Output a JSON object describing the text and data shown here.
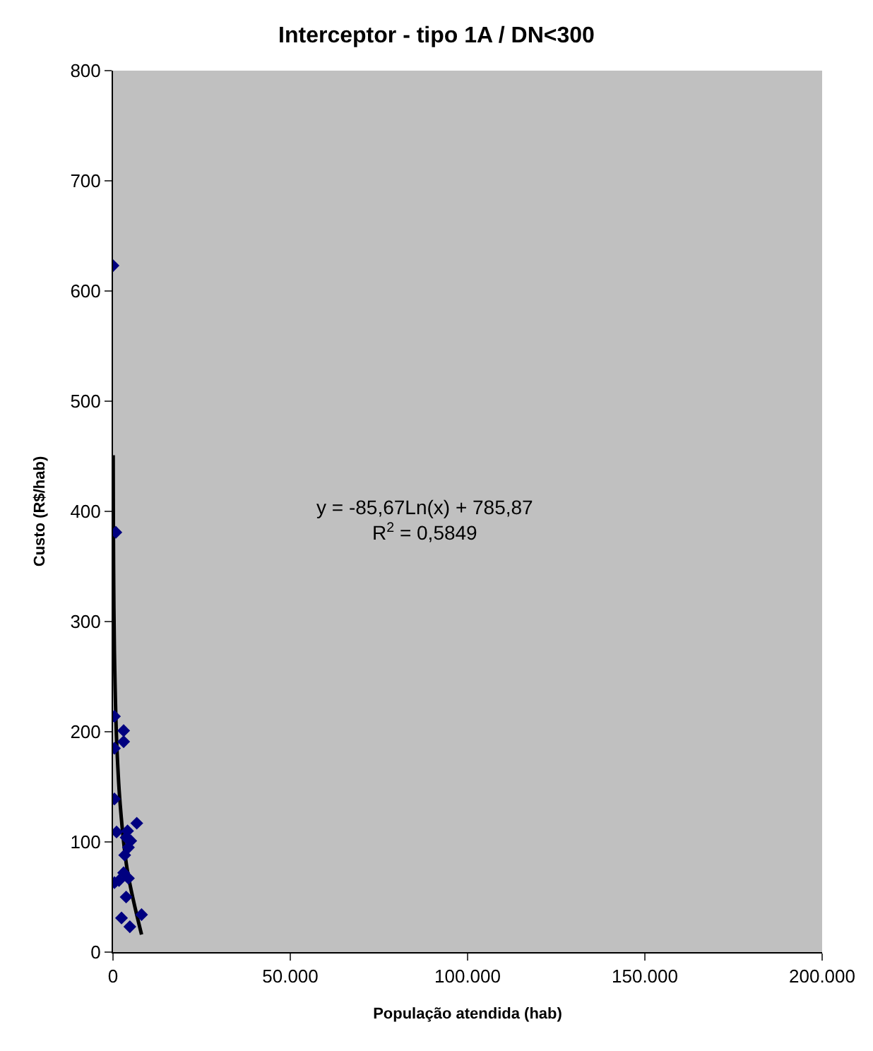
{
  "chart_data": {
    "type": "scatter",
    "title": "Interceptor - tipo 1A / DN<300",
    "xlabel": "População atendida (hab)",
    "ylabel": "Custo (R$/hab)",
    "series": [
      {
        "color": "#000080",
        "marker": "diamond",
        "x": [
          0,
          800,
          400,
          3000,
          3000,
          400,
          400,
          1000,
          4100,
          6700,
          3700,
          5000,
          4350,
          3300,
          3000,
          400,
          1700,
          4350,
          3700,
          2400,
          4750,
          8050
        ],
        "values": [
          623,
          381,
          214,
          201,
          191,
          185,
          139,
          109,
          110,
          117,
          104,
          101,
          95,
          88,
          72,
          63,
          65,
          67,
          50,
          31,
          23,
          34
        ]
      },
      {
        "type": "line",
        "color": "#000000",
        "marker": "none",
        "line_style": "solid",
        "x": [
          50,
          100,
          200,
          400,
          1000,
          2000,
          4000,
          8050
        ],
        "values": [
          451,
          391,
          332,
          273,
          194,
          135,
          75,
          16
        ]
      }
    ],
    "xlim": [
      0,
      200000
    ],
    "xticks": [
      0,
      {
        "value": 50000,
        "label": "50.000"
      },
      {
        "value": 100000,
        "label": "100.000"
      },
      {
        "value": 150000,
        "label": "150.000"
      },
      {
        "value": 200000,
        "label": "200.000"
      }
    ],
    "ylim": [
      0,
      800
    ],
    "yticks": [
      0,
      100,
      200,
      300,
      400,
      500,
      600,
      700,
      800
    ],
    "annotations": [
      "y = -85,67Ln(x) + 785,87\nR$^{2}$ = 0,5849"
    ],
    "grid": false
  }
}
